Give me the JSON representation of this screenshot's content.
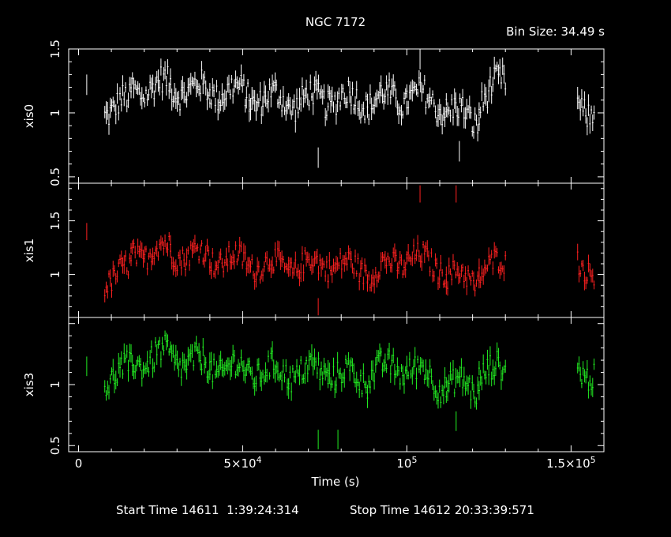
{
  "chart_data": {
    "type": "scatter",
    "title": "NGC 7172",
    "bin_size_label": "Bin Size: 34.49 s",
    "xlabel": "Time (s)",
    "xlim": [
      -3000,
      160000
    ],
    "x_ticks": [
      {
        "value": 0,
        "label": "0"
      },
      {
        "value": 50000,
        "label": "5×10",
        "exp": "4"
      },
      {
        "value": 100000,
        "label": "10",
        "exp": "5"
      },
      {
        "value": 150000,
        "label": "1.5×10",
        "exp": "5"
      }
    ],
    "start_time_label": "Start Time 14611  1:39:24:314",
    "stop_time_label": "Stop Time 14612 20:33:39:571",
    "panels": [
      {
        "name": "xis0",
        "color": "#ffffff",
        "ylim": [
          0.45,
          1.5
        ],
        "y_ticks": [
          {
            "value": 0.5,
            "label": "0.5"
          },
          {
            "value": 1,
            "label": "1"
          },
          {
            "value": 1.5,
            "label": "1.5"
          }
        ],
        "segments": [
          {
            "x": [
              8000,
              16000
            ],
            "y": [
              1.03,
              1.08
            ]
          },
          {
            "x": [
              16000,
              28000
            ],
            "y": [
              1.18,
              1.22
            ]
          },
          {
            "x": [
              28000,
              40000
            ],
            "y": [
              1.2,
              1.17
            ]
          },
          {
            "x": [
              40000,
              52000
            ],
            "y": [
              1.18,
              1.15
            ]
          },
          {
            "x": [
              52000,
              64000
            ],
            "y": [
              1.12,
              1.1
            ]
          },
          {
            "x": [
              64000,
              76000
            ],
            "y": [
              1.08,
              1.12
            ]
          },
          {
            "x": [
              76000,
              88000
            ],
            "y": [
              1.12,
              1.1
            ]
          },
          {
            "x": [
              88000,
              100000
            ],
            "y": [
              1.1,
              1.12
            ]
          },
          {
            "x": [
              100000,
              112000
            ],
            "y": [
              1.15,
              1.05
            ]
          },
          {
            "x": [
              112000,
              122000
            ],
            "y": [
              1.02,
              0.95
            ]
          },
          {
            "x": [
              122000,
              130000
            ],
            "y": [
              1.1,
              1.25
            ]
          },
          {
            "x": [
              152000,
              157000
            ],
            "y": [
              1.05,
              1.02
            ]
          }
        ],
        "spikes": [
          {
            "x": 2500,
            "y": 1.22
          },
          {
            "x": 73000,
            "y": 0.65
          },
          {
            "x": 116000,
            "y": 0.7
          },
          {
            "x": 104000,
            "y": 1.42
          }
        ]
      },
      {
        "name": "xis1",
        "color": "#ff2020",
        "ylim": [
          0.6,
          1.85
        ],
        "y_ticks": [
          {
            "value": 1,
            "label": "1"
          },
          {
            "value": 1.5,
            "label": "1.5"
          }
        ],
        "segments": [
          {
            "x": [
              8000,
              16000
            ],
            "y": [
              0.95,
              1.05
            ]
          },
          {
            "x": [
              16000,
              28000
            ],
            "y": [
              1.18,
              1.25
            ]
          },
          {
            "x": [
              28000,
              40000
            ],
            "y": [
              1.2,
              1.18
            ]
          },
          {
            "x": [
              40000,
              52000
            ],
            "y": [
              1.15,
              1.12
            ]
          },
          {
            "x": [
              52000,
              64000
            ],
            "y": [
              1.1,
              1.08
            ]
          },
          {
            "x": [
              64000,
              76000
            ],
            "y": [
              1.08,
              1.1
            ]
          },
          {
            "x": [
              76000,
              88000
            ],
            "y": [
              1.1,
              1.05
            ]
          },
          {
            "x": [
              88000,
              100000
            ],
            "y": [
              1.0,
              1.15
            ]
          },
          {
            "x": [
              100000,
              112000
            ],
            "y": [
              1.18,
              1.05
            ]
          },
          {
            "x": [
              112000,
              122000
            ],
            "y": [
              1.0,
              0.95
            ]
          },
          {
            "x": [
              122000,
              130000
            ],
            "y": [
              1.05,
              1.1
            ]
          },
          {
            "x": [
              152000,
              157000
            ],
            "y": [
              1.1,
              1.05
            ]
          }
        ],
        "spikes": [
          {
            "x": 2500,
            "y": 1.4
          },
          {
            "x": 73000,
            "y": 0.7
          },
          {
            "x": 104000,
            "y": 1.75
          },
          {
            "x": 115000,
            "y": 1.75
          }
        ]
      },
      {
        "name": "xis3",
        "color": "#22ee22",
        "ylim": [
          0.45,
          1.55
        ],
        "y_ticks": [
          {
            "value": 0.5,
            "label": "0.5"
          },
          {
            "value": 1,
            "label": "1"
          }
        ],
        "segments": [
          {
            "x": [
              8000,
              16000
            ],
            "y": [
              1.05,
              1.12
            ]
          },
          {
            "x": [
              16000,
              28000
            ],
            "y": [
              1.18,
              1.25
            ]
          },
          {
            "x": [
              28000,
              40000
            ],
            "y": [
              1.22,
              1.15
            ]
          },
          {
            "x": [
              40000,
              52000
            ],
            "y": [
              1.15,
              1.12
            ]
          },
          {
            "x": [
              52000,
              64000
            ],
            "y": [
              1.12,
              1.1
            ]
          },
          {
            "x": [
              64000,
              76000
            ],
            "y": [
              1.1,
              1.12
            ]
          },
          {
            "x": [
              76000,
              88000
            ],
            "y": [
              1.1,
              1.05
            ]
          },
          {
            "x": [
              88000,
              100000
            ],
            "y": [
              1.1,
              1.15
            ]
          },
          {
            "x": [
              100000,
              112000
            ],
            "y": [
              1.15,
              1.0
            ]
          },
          {
            "x": [
              112000,
              122000
            ],
            "y": [
              1.0,
              0.98
            ]
          },
          {
            "x": [
              122000,
              130000
            ],
            "y": [
              1.12,
              1.1
            ]
          },
          {
            "x": [
              152000,
              157000
            ],
            "y": [
              1.12,
              1.1
            ]
          }
        ],
        "spikes": [
          {
            "x": 2500,
            "y": 1.15
          },
          {
            "x": 73000,
            "y": 0.55
          },
          {
            "x": 79000,
            "y": 0.55
          },
          {
            "x": 115000,
            "y": 0.7
          }
        ]
      }
    ]
  }
}
